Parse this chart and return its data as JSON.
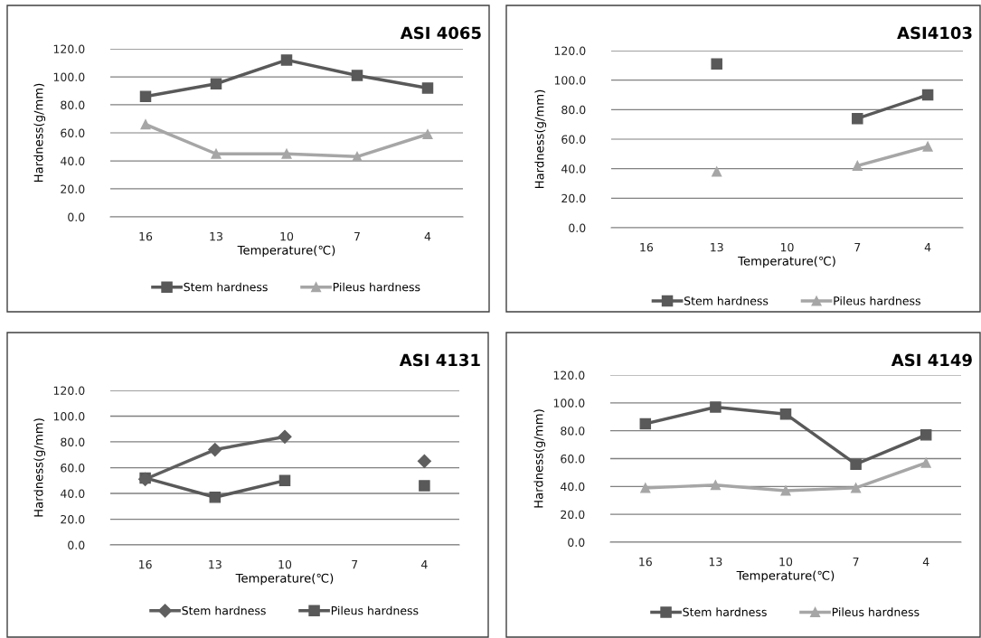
{
  "chart_data": [
    {
      "type": "line",
      "title": "ASI 4065",
      "xlabel": "Temperature(℃)",
      "ylabel": "Hardness(g/mm)",
      "categories": [
        "16",
        "13",
        "10",
        "7",
        "4"
      ],
      "ylim": [
        0,
        120
      ],
      "yticks": [
        {
          "value": 0,
          "label": "0.0"
        },
        {
          "value": 20,
          "label": "20.0"
        },
        {
          "value": 40,
          "label": "40.0"
        },
        {
          "value": 60,
          "label": "60.0"
        },
        {
          "value": 80,
          "label": "80.0"
        },
        {
          "value": 100,
          "label": "100.0"
        },
        {
          "value": 120,
          "label": "120.0"
        }
      ],
      "grid": "y",
      "legend": "bottom",
      "series": [
        {
          "name": "Stem hardness",
          "color": "#595959",
          "marker": "square",
          "values": [
            86,
            95,
            112,
            101,
            92
          ]
        },
        {
          "name": "Pileus hardness",
          "color": "#a6a6a6",
          "marker": "triangle",
          "values": [
            66,
            45,
            45,
            43,
            59
          ]
        }
      ]
    },
    {
      "type": "line",
      "title": "ASI4103",
      "xlabel": "Temperature(℃)",
      "ylabel": "Hardness(g/mm)",
      "categories": [
        "16",
        "13",
        "10",
        "7",
        "4"
      ],
      "ylim": [
        0,
        120
      ],
      "yticks": [
        {
          "value": 0,
          "label": "0.0"
        },
        {
          "value": 20,
          "label": "20.0"
        },
        {
          "value": 40,
          "label": "40.0"
        },
        {
          "value": 60,
          "label": "60.0"
        },
        {
          "value": 80,
          "label": "80.0"
        },
        {
          "value": 100,
          "label": "100.0"
        },
        {
          "value": 120,
          "label": "120.0"
        }
      ],
      "grid": "y",
      "legend": "bottom",
      "series": [
        {
          "name": "Stem hardness",
          "color": "#595959",
          "marker": "square",
          "values": [
            null,
            111,
            null,
            74,
            90
          ]
        },
        {
          "name": "Pileus hardness",
          "color": "#a6a6a6",
          "marker": "triangle",
          "values": [
            null,
            38,
            null,
            42,
            55
          ]
        }
      ]
    },
    {
      "type": "line",
      "title": "ASI 4131",
      "xlabel": "Temperature(℃)",
      "ylabel": "Hardness(g/mm)",
      "categories": [
        "16",
        "13",
        "10",
        "7",
        "4"
      ],
      "ylim": [
        0,
        120
      ],
      "yticks": [
        {
          "value": 0,
          "label": "0.0"
        },
        {
          "value": 20,
          "label": "20.0"
        },
        {
          "value": 40,
          "label": "40.0"
        },
        {
          "value": 60,
          "label": "60.0"
        },
        {
          "value": 80,
          "label": "80.0"
        },
        {
          "value": 100,
          "label": "100.0"
        },
        {
          "value": 120,
          "label": "120.0"
        }
      ],
      "grid": "y",
      "legend": "bottom",
      "series": [
        {
          "name": "Stem hardness",
          "color": "#5f5f5f",
          "marker": "diamond",
          "values": [
            51,
            74,
            84,
            null,
            65
          ]
        },
        {
          "name": "Pileus hardness",
          "color": "#595959",
          "marker": "square",
          "values": [
            52,
            37,
            50,
            null,
            46
          ]
        }
      ]
    },
    {
      "type": "line",
      "title": "ASI 4149",
      "xlabel": "Temperature(℃)",
      "ylabel": "Hardness(g/mm)",
      "categories": [
        "16",
        "13",
        "10",
        "7",
        "4"
      ],
      "ylim": [
        0,
        120
      ],
      "yticks": [
        {
          "value": 0,
          "label": "0.0"
        },
        {
          "value": 20,
          "label": "20.0"
        },
        {
          "value": 40,
          "label": "40.0"
        },
        {
          "value": 60,
          "label": "60.0"
        },
        {
          "value": 80,
          "label": "80.0"
        },
        {
          "value": 100,
          "label": "100.0"
        },
        {
          "value": 120,
          "label": "120.0"
        }
      ],
      "grid": "y",
      "legend": "bottom",
      "series": [
        {
          "name": "Stem hardness",
          "color": "#595959",
          "marker": "square",
          "values": [
            85,
            97,
            92,
            56,
            77
          ]
        },
        {
          "name": "Pileus hardness",
          "color": "#a6a6a6",
          "marker": "triangle",
          "values": [
            39,
            41,
            37,
            39,
            57
          ]
        }
      ]
    }
  ]
}
